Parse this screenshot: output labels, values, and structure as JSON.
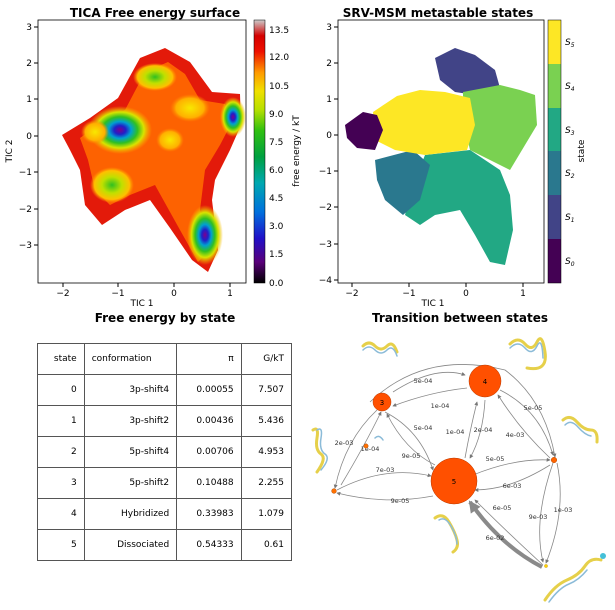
{
  "fes_panel": {
    "title": "TICA Free energy surface",
    "xlabel": "TIC 1",
    "ylabel": "TIC 2",
    "xticks": [
      "−2",
      "−1",
      "0",
      "1"
    ],
    "yticks": [
      "3",
      "2",
      "1",
      "0",
      "−1",
      "−2",
      "−3"
    ],
    "colorbar_label": "free energy / kT",
    "colorbar_ticks": [
      "13.5",
      "12.0",
      "10.5",
      "9.0",
      "7.5",
      "6.0",
      "4.5",
      "3.0",
      "1.5",
      "0.0"
    ]
  },
  "msm_panel": {
    "title": "SRV-MSM metastable states",
    "xlabel": "TIC 1",
    "xticks": [
      "−2",
      "−1",
      "0",
      "1"
    ],
    "yticks": [
      "3",
      "2",
      "1",
      "0",
      "−1",
      "−2",
      "−3",
      "−4"
    ],
    "colorbar_label": "state",
    "state_labels": [
      "S",
      "S",
      "S",
      "S",
      "S",
      "S"
    ],
    "state_subs": [
      "5",
      "4",
      "3",
      "2",
      "1",
      "0"
    ],
    "state_colors": [
      "#fde725",
      "#7ad151",
      "#22a884",
      "#2a788e",
      "#414487",
      "#440154"
    ]
  },
  "table_panel": {
    "title": "Free energy by state",
    "headers": [
      "state",
      "conformation",
      "π",
      "G/kT"
    ],
    "rows": [
      [
        "0",
        "3p-shift4",
        "0.00055",
        "7.507"
      ],
      [
        "1",
        "3p-shift2",
        "0.00436",
        "5.436"
      ],
      [
        "2",
        "5p-shift4",
        "0.00706",
        "4.953"
      ],
      [
        "3",
        "5p-shift2",
        "0.10488",
        "2.255"
      ],
      [
        "4",
        "Hybridized",
        "0.33983",
        "1.079"
      ],
      [
        "5",
        "Dissociated",
        "0.54333",
        "0.61"
      ]
    ]
  },
  "network_panel": {
    "title": "Transition between states",
    "node_labels": [
      "3",
      "4",
      "5"
    ],
    "edge_labels": [
      "5e-04",
      "1e-04",
      "5e-05",
      "4e-03",
      "2e-04",
      "1e-04",
      "5e-04",
      "9e-05",
      "2e-03",
      "1e-04",
      "7e-03",
      "9e-05",
      "5e-05",
      "6e-03",
      "6e-05",
      "9e-03",
      "1e-03",
      "6e-02"
    ]
  },
  "chart_data": [
    {
      "type": "heatmap",
      "title": "TICA Free energy surface",
      "xlabel": "TIC 1",
      "ylabel": "TIC 2",
      "xlim": [
        -2.4,
        1.2
      ],
      "ylim": [
        -3.9,
        3.1
      ],
      "colorbar": {
        "label": "free energy / kT",
        "range": [
          0.0,
          13.5
        ]
      },
      "minima": [
        {
          "x": -0.95,
          "y": 0.15,
          "value": 0.5
        },
        {
          "x": 1.05,
          "y": 0.55,
          "value": 1.0
        },
        {
          "x": 0.55,
          "y": -2.8,
          "value": 1.5
        },
        {
          "x": -0.1,
          "y": 1.6,
          "value": 6.0
        },
        {
          "x": -0.85,
          "y": -1.3,
          "value": 6.5
        },
        {
          "x": 0.6,
          "y": 0.9,
          "value": 7.0
        },
        {
          "x": -1.5,
          "y": 0.0,
          "value": 10.0
        }
      ]
    },
    {
      "type": "scatter",
      "title": "SRV-MSM metastable states",
      "xlabel": "TIC 1",
      "xlim": [
        -2.4,
        1.2
      ],
      "ylim": [
        -4.0,
        3.1
      ],
      "legend": [
        "S5",
        "S4",
        "S3",
        "S2",
        "S1",
        "S0"
      ]
    },
    {
      "type": "table",
      "title": "Free energy by state",
      "columns": [
        "state",
        "conformation",
        "π",
        "G/kT"
      ],
      "rows": [
        [
          "0",
          "3p-shift4",
          0.00055,
          7.507
        ],
        [
          "1",
          "3p-shift2",
          0.00436,
          5.436
        ],
        [
          "2",
          "5p-shift4",
          0.00706,
          4.953
        ],
        [
          "3",
          "5p-shift2",
          0.10488,
          2.255
        ],
        [
          "4",
          "Hybridized",
          0.33983,
          1.079
        ],
        [
          "5",
          "Dissociated",
          0.54333,
          0.61
        ]
      ]
    }
  ]
}
